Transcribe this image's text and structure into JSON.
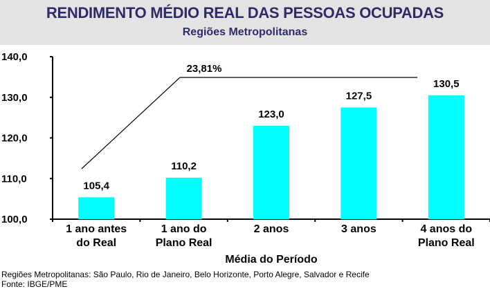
{
  "chart_data": {
    "type": "bar",
    "title": "RENDIMENTO MÉDIO REAL DAS PESSOAS OCUPADAS",
    "subtitle": "Regiões Metropolitanas",
    "categories": [
      [
        "1 ano antes",
        "do Real"
      ],
      [
        "1 ano do",
        "Plano Real"
      ],
      [
        "2 anos",
        ""
      ],
      [
        "3 anos",
        ""
      ],
      [
        "4 anos do",
        "Plano Real"
      ]
    ],
    "values": [
      105.4,
      110.2,
      123.0,
      127.5,
      130.5
    ],
    "value_labels": [
      "105,4",
      "110,2",
      "123,0",
      "127,5",
      "130,5"
    ],
    "xlabel": "Média do Período",
    "ylabel": "",
    "ylim": [
      100,
      140
    ],
    "yticks": [
      100,
      110,
      120,
      130,
      140
    ],
    "ytick_labels": [
      "100,0",
      "110,0",
      "120,0",
      "130,0",
      "140,0"
    ],
    "annotation": "23,81%",
    "bar_color": "#00ffff",
    "grid": false
  },
  "header": {
    "background": "#e3e3e3",
    "title_color": "#2c2c6a"
  },
  "footer": {
    "note": "Regiões Metropolitanas: São Paulo, Rio de Janeiro, Belo Horizonte, Porto Alegre, Salvador e Recife",
    "source": "Fonte: IBGE/PME"
  }
}
